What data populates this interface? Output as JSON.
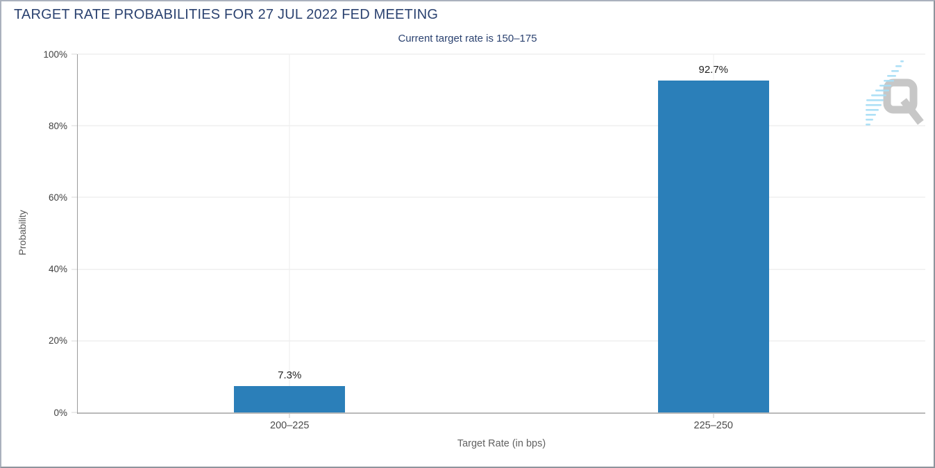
{
  "chart_data": {
    "type": "bar",
    "title": "TARGET RATE PROBABILITIES FOR 27 JUL 2022 FED MEETING",
    "subtitle": "Current target rate is 150–175",
    "categories": [
      "200–225",
      "225–250"
    ],
    "values": [
      7.3,
      92.7
    ],
    "bar_labels": [
      "7.3%",
      "92.7%"
    ],
    "xlabel": "Target Rate (in bps)",
    "ylabel": "Probability",
    "ylim": [
      0,
      100
    ],
    "yticks": [
      {
        "value": 0,
        "label": "0%"
      },
      {
        "value": 20,
        "label": "20%"
      },
      {
        "value": 40,
        "label": "40%"
      },
      {
        "value": 60,
        "label": "60%"
      },
      {
        "value": 80,
        "label": "80%"
      },
      {
        "value": 100,
        "label": "100%"
      }
    ],
    "grid": true,
    "legend": "none"
  },
  "logo": {
    "icon": "quikstrike-q-logo",
    "letter": "Q"
  },
  "colors": {
    "bar": "#2b7fb9",
    "title_navy": "#2b4270",
    "logo_gray": "#c7c7c7",
    "logo_blue": "#a8def6"
  }
}
